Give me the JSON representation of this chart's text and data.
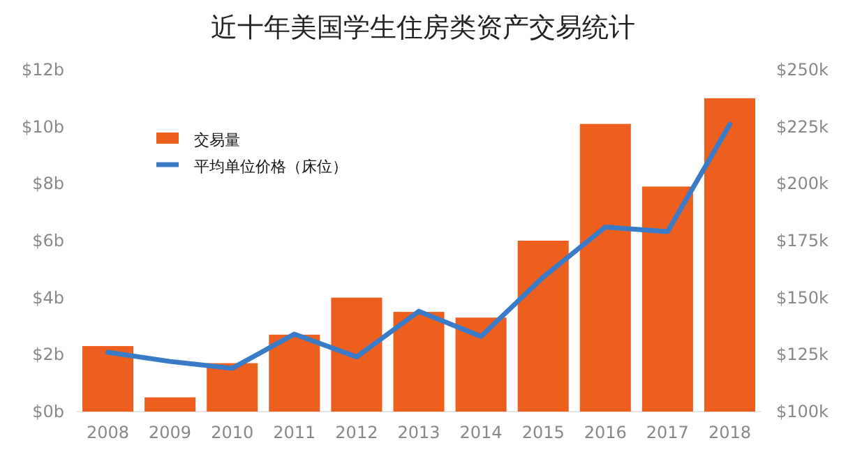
{
  "chart_data": {
    "type": "bar",
    "title": "近十年美国学生住房类资产交易统计",
    "categories": [
      "2008",
      "2009",
      "2010",
      "2011",
      "2012",
      "2013",
      "2014",
      "2015",
      "2016",
      "2017",
      "2018"
    ],
    "series": [
      {
        "name": "交易量",
        "color": "#ec5f1f",
        "values": [
          2.3,
          0.5,
          1.7,
          2.7,
          4.0,
          3.5,
          3.3,
          6.0,
          10.1,
          7.9,
          11.0
        ]
      },
      {
        "name": "平均单位价格（床位）",
        "type": "line",
        "axis": "y2",
        "color": "#3a7bc8",
        "values": [
          126,
          122,
          119,
          134,
          124,
          144,
          133,
          159,
          181,
          179,
          226
        ]
      }
    ],
    "ylim": [
      0,
      12
    ],
    "yticks": [
      {
        "value": 0,
        "label": "$0b"
      },
      {
        "value": 2,
        "label": "$2b"
      },
      {
        "value": 4,
        "label": "$4b"
      },
      {
        "value": 6,
        "label": "$6b"
      },
      {
        "value": 8,
        "label": "$8b"
      },
      {
        "value": 10,
        "label": "$10b"
      },
      {
        "value": 12,
        "label": "$12b"
      }
    ],
    "y2lim": [
      100,
      250
    ],
    "y2ticks": [
      {
        "value": 100,
        "label": "$100k"
      },
      {
        "value": 125,
        "label": "$125k"
      },
      {
        "value": 150,
        "label": "$150k"
      },
      {
        "value": 175,
        "label": "$175k"
      },
      {
        "value": 200,
        "label": "$200k"
      },
      {
        "value": 225,
        "label": "$225k"
      },
      {
        "value": 250,
        "label": "$250k"
      }
    ],
    "legend": "top left",
    "marker": "none",
    "line_style": "solid"
  }
}
